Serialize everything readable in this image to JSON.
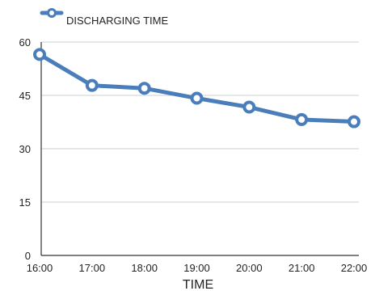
{
  "chart_data": {
    "type": "line",
    "title": "",
    "xlabel": "TIME",
    "ylabel": "",
    "ylim": [
      0,
      60
    ],
    "yticks": [
      "0",
      "15",
      "30",
      "45",
      "60"
    ],
    "ytick_values": [
      0,
      15,
      30,
      45,
      60
    ],
    "categories": [
      "16:00",
      "17:00",
      "18:00",
      "19:00",
      "20:00",
      "21:00",
      "22:00"
    ],
    "series": [
      {
        "name": "DISCHARGING TIME",
        "values": [
          56.5,
          47.8,
          47.0,
          44.2,
          41.7,
          38.2,
          37.6
        ],
        "color": "#4a7ebb"
      }
    ],
    "legend_position": "top-left",
    "grid": "horizontal"
  }
}
